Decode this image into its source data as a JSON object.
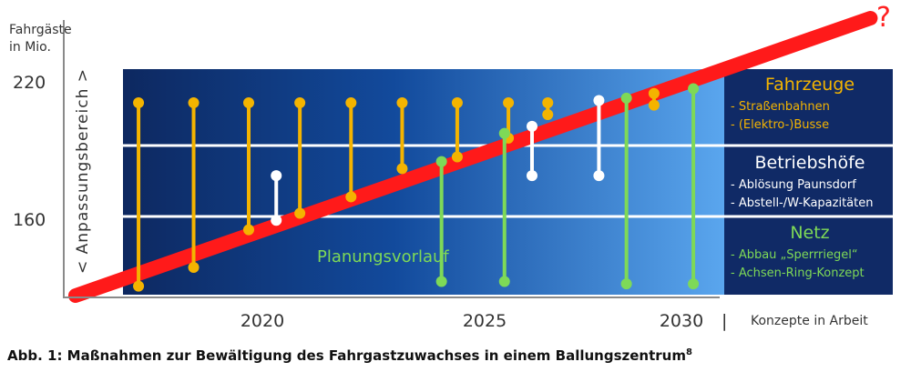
{
  "chart_data": {
    "type": "line",
    "ylabel": [
      "Fahrgäste",
      "in Mio."
    ],
    "y_ticks": [
      "220",
      "160"
    ],
    "x_ticks": [
      "2020",
      "2025",
      "2030"
    ],
    "x_after_separator": "Konzepte in Arbeit",
    "separator": "|",
    "y_bracket_label": "< Anpassungsbereich >",
    "trend_end_symbol": "?",
    "trend": [
      [
        2015.5,
        130
      ],
      [
        2035.7,
        248
      ]
    ],
    "planning_label": "Planungsvorlauf",
    "categories": [
      {
        "name": "Fahrzeuge",
        "items": [
          "- Straßenbahnen",
          "- (Elektro-)Busse"
        ],
        "color": "#f4b400"
      },
      {
        "name": "Betriebshöfe",
        "items": [
          "- Ablösung Paunsdorf",
          "- Abstell-/W-Kapazitäten"
        ],
        "color": "#ffffff"
      },
      {
        "name": "Netz",
        "items": [
          "- Abbau „Sperrriegel“",
          "- Achsen-Ring-Konzept"
        ],
        "color": "#7ed957"
      }
    ],
    "series": [
      {
        "name": "Fahrzeuge",
        "color": "#f4b400",
        "bars": [
          [
            2017.1,
            212,
            134
          ],
          [
            2018.5,
            212,
            142
          ],
          [
            2019.9,
            212,
            158
          ],
          [
            2021.2,
            212,
            165
          ],
          [
            2022.5,
            212,
            172
          ],
          [
            2023.8,
            212,
            184
          ],
          [
            2025.2,
            212,
            189
          ],
          [
            2026.5,
            212,
            197
          ],
          [
            2027.5,
            212,
            207
          ],
          [
            2030.2,
            216,
            211
          ]
        ]
      },
      {
        "name": "Betriebshöfe",
        "color": "#ffffff",
        "bars": [
          [
            2020.6,
            181,
            162
          ],
          [
            2027.1,
            202,
            181
          ],
          [
            2028.8,
            213,
            181
          ]
        ]
      },
      {
        "name": "Netz",
        "color": "#7ed957",
        "bars": [
          [
            2024.8,
            187,
            136
          ],
          [
            2026.4,
            199,
            136
          ],
          [
            2029.5,
            214,
            135
          ],
          [
            2031.2,
            218,
            135
          ]
        ]
      }
    ],
    "y_range": [
      130,
      248
    ],
    "x_range": [
      2015.2,
      2036.5
    ]
  },
  "caption": {
    "text": "Abb. 1: Maßnahmen zur Bewältigung des Fahrgastzuwachses in einem Ballungszentrum",
    "sup": "8"
  }
}
